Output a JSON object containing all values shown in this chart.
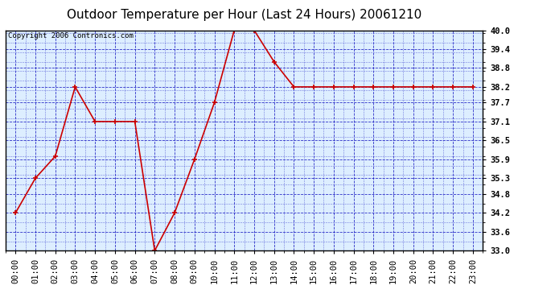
{
  "title": "Outdoor Temperature per Hour (Last 24 Hours) 20061210",
  "copyright": "Copyright 2006 Contronics.com",
  "hours": [
    "00:00",
    "01:00",
    "02:00",
    "03:00",
    "04:00",
    "05:00",
    "06:00",
    "07:00",
    "08:00",
    "09:00",
    "10:00",
    "11:00",
    "12:00",
    "13:00",
    "14:00",
    "15:00",
    "16:00",
    "17:00",
    "18:00",
    "19:00",
    "20:00",
    "21:00",
    "22:00",
    "23:00"
  ],
  "temps": [
    34.2,
    35.3,
    36.0,
    38.2,
    37.1,
    37.1,
    37.1,
    33.0,
    34.2,
    35.9,
    37.7,
    40.0,
    40.0,
    39.0,
    38.2,
    38.2,
    38.2,
    38.2,
    38.2,
    38.2,
    38.2,
    38.2,
    38.2,
    38.2
  ],
  "y_min": 33.0,
  "y_max": 40.0,
  "y_ticks": [
    33.0,
    33.6,
    34.2,
    34.8,
    35.3,
    35.9,
    36.5,
    37.1,
    37.7,
    38.2,
    38.8,
    39.4,
    40.0
  ],
  "line_color": "#cc0000",
  "marker_color": "#cc0000",
  "bg_color": "#ddeeff",
  "grid_color": "#0000bb",
  "border_color": "#000000",
  "title_fontsize": 11,
  "copyright_fontsize": 6.5,
  "tick_fontsize": 7.5
}
